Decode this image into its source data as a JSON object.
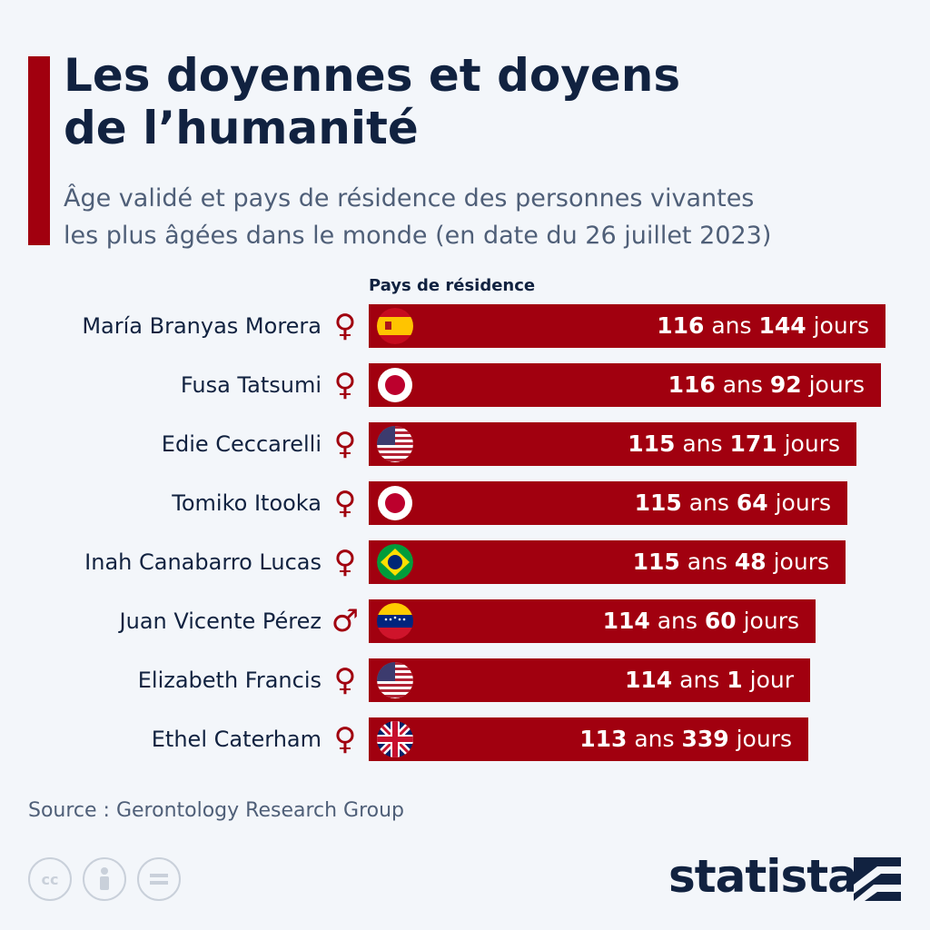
{
  "title_line1": "Les doyennes et doyens",
  "title_line2": "de l’humanité",
  "subtitle_line1": "Âge validé et pays de résidence des personnes vivantes",
  "subtitle_line2": "les plus âgées dans le monde (en date du 26 juillet 2023)",
  "column_header": "Pays de résidence",
  "source": "Source : Gerontology Research Group",
  "brand": "statista",
  "colors": {
    "bar": "#a1000f",
    "title": "#112240",
    "background": "#f3f6fa"
  },
  "chart_data": {
    "type": "bar",
    "orientation": "horizontal",
    "categories": [
      "María Branyas Morera",
      "Fusa Tatsumi",
      "Edie Ceccarelli",
      "Tomiko Itooka",
      "Inah Canabarro Lucas",
      "Juan Vicente Pérez",
      "Elizabeth Francis",
      "Ethel Caterham"
    ],
    "values": [
      116.39,
      116.25,
      115.47,
      115.18,
      115.13,
      114.16,
      114.0,
      113.93
    ],
    "genders": [
      "female",
      "female",
      "female",
      "female",
      "female",
      "male",
      "female",
      "female"
    ],
    "countries": [
      "spain-flag-icon",
      "japan-flag-icon",
      "usa-flag-icon",
      "japan-flag-icon",
      "brazil-flag-icon",
      "venezuela-flag-icon",
      "usa-flag-icon",
      "uk-flag-icon"
    ],
    "labels": [
      {
        "years": "116",
        "days": "144",
        "ans": "ans",
        "jours": "jours"
      },
      {
        "years": "116",
        "days": "92",
        "ans": "ans",
        "jours": "jours"
      },
      {
        "years": "115",
        "days": "171",
        "ans": "ans",
        "jours": "jours"
      },
      {
        "years": "115",
        "days": "64",
        "ans": "ans",
        "jours": "jours"
      },
      {
        "years": "115",
        "days": "48",
        "ans": "ans",
        "jours": "jours"
      },
      {
        "years": "114",
        "days": "60",
        "ans": "ans",
        "jours": "jours"
      },
      {
        "years": "114",
        "days": "1",
        "ans": "ans",
        "jours": "jour"
      },
      {
        "years": "113",
        "days": "339",
        "ans": "ans",
        "jours": "jours"
      }
    ]
  }
}
